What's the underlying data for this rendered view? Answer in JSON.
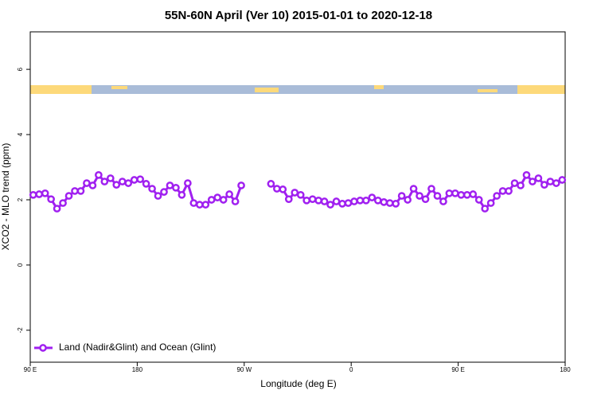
{
  "chart_data": {
    "type": "line",
    "title": "55N-60N April (Ver 10)   2015-01-01 to 2020-12-18",
    "x_label": "Longitude (deg E)",
    "y_label": "XCO2 - MLO trend (ppm)",
    "xlim": [
      90,
      540
    ],
    "ylim": [
      -2.98,
      7.15
    ],
    "xticks": [
      {
        "value": 90,
        "label": "90 E"
      },
      180,
      {
        "value": 270,
        "label": "90 W"
      },
      {
        "value": 360,
        "label": "0"
      },
      {
        "value": 450,
        "label": "90 E"
      },
      {
        "value": 540,
        "label": "180"
      }
    ],
    "yticks": [
      -2,
      0,
      2,
      4,
      6
    ],
    "grid": false,
    "legend_position": "bottom-left",
    "x": [
      92.5,
      97.5,
      102.5,
      107.5,
      112.5,
      117.5,
      122.5,
      127.5,
      132.5,
      137.5,
      142.5,
      147.5,
      152.5,
      157.5,
      162.5,
      167.5,
      172.5,
      177.5,
      182.5,
      187.5,
      192.5,
      197.5,
      202.5,
      207.5,
      212.5,
      217.5,
      222.5,
      227.5,
      232.5,
      237.5,
      242.5,
      247.5,
      252.5,
      257.5,
      262.5,
      267.5,
      272.5,
      277.5,
      282.5,
      287.5,
      292.5,
      297.5,
      302.5,
      307.5,
      312.5,
      317.5,
      322.5,
      327.5,
      332.5,
      337.5,
      342.5,
      347.5,
      352.5,
      357.5,
      362.5,
      367.5,
      372.5,
      377.5,
      382.5,
      387.5,
      392.5,
      397.5,
      402.5,
      407.5,
      412.5,
      417.5,
      422.5,
      427.5,
      432.5,
      437.5,
      442.5,
      447.5,
      452.5,
      457.5,
      462.5,
      467.5,
      472.5,
      477.5,
      482.5,
      487.5,
      492.5,
      497.5,
      502.5,
      507.5,
      512.5,
      517.5,
      522.5,
      527.5,
      532.5,
      537.5
    ],
    "series": [
      {
        "name": "Land (Nadir&Glint) and Ocean (Glint)",
        "color": "#a020f0",
        "values": [
          2.15,
          2.17,
          2.2,
          2.02,
          1.73,
          1.9,
          2.12,
          2.27,
          2.27,
          2.51,
          2.44,
          2.76,
          2.56,
          2.66,
          2.46,
          2.56,
          2.51,
          2.61,
          2.63,
          2.49,
          2.34,
          2.12,
          2.24,
          2.44,
          2.37,
          2.15,
          2.51,
          1.9,
          1.85,
          1.85,
          2.0,
          2.07,
          2.0,
          2.17,
          1.95,
          2.44,
          null,
          null,
          null,
          null,
          2.49,
          2.34,
          2.32,
          2.02,
          2.22,
          2.15,
          1.98,
          2.02,
          1.98,
          1.95,
          1.85,
          1.95,
          1.88,
          1.9,
          1.95,
          1.98,
          1.98,
          2.07,
          1.98,
          1.93,
          1.9,
          1.88,
          2.12,
          2.0,
          2.34,
          2.12,
          2.02,
          2.34,
          2.12,
          1.95,
          2.2,
          2.2,
          2.15,
          2.15,
          2.17,
          2.0,
          1.73,
          1.9,
          2.12,
          2.27,
          2.27,
          2.51,
          2.44,
          2.76,
          2.56,
          2.66,
          2.46,
          2.56,
          2.51,
          2.61
        ]
      }
    ]
  }
}
